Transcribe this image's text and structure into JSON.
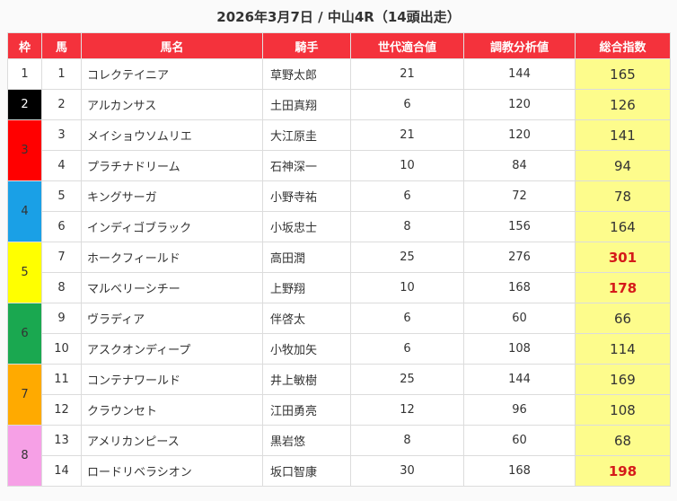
{
  "title": "2026年3月7日 / 中山4R（14頭出走）",
  "headers": [
    "枠",
    "馬",
    "馬名",
    "騎手",
    "世代適合値",
    "調教分析値",
    "総合指数"
  ],
  "waku_colors": {
    "1": {
      "bg": "#ffffff",
      "fg": "#333333"
    },
    "2": {
      "bg": "#000000",
      "fg": "#ffffff"
    },
    "3": {
      "bg": "#ff0000",
      "fg": "#333333"
    },
    "4": {
      "bg": "#1aa0e6",
      "fg": "#333333"
    },
    "5": {
      "bg": "#ffff00",
      "fg": "#333333"
    },
    "6": {
      "bg": "#1aa850",
      "fg": "#333333"
    },
    "7": {
      "bg": "#ffaa00",
      "fg": "#333333"
    },
    "8": {
      "bg": "#f6a0e6",
      "fg": "#333333"
    }
  },
  "highlight_color": "#d51a1a",
  "score_bg": "#fdfc8c",
  "rows": [
    {
      "waku": "1",
      "uma": "1",
      "name": "コレクテイニア",
      "jockey": "草野太郎",
      "sedai": "21",
      "chokyo": "144",
      "sogo": "165",
      "hi": false
    },
    {
      "waku": "2",
      "uma": "2",
      "name": "アルカンサス",
      "jockey": "土田真翔",
      "sedai": "6",
      "chokyo": "120",
      "sogo": "126",
      "hi": false
    },
    {
      "waku": "3",
      "uma": "3",
      "name": "メイショウソムリエ",
      "jockey": "大江原圭",
      "sedai": "21",
      "chokyo": "120",
      "sogo": "141",
      "hi": false
    },
    {
      "waku": "3",
      "uma": "4",
      "name": "プラチナドリーム",
      "jockey": "石神深一",
      "sedai": "10",
      "chokyo": "84",
      "sogo": "94",
      "hi": false
    },
    {
      "waku": "4",
      "uma": "5",
      "name": "キングサーガ",
      "jockey": "小野寺祐",
      "sedai": "6",
      "chokyo": "72",
      "sogo": "78",
      "hi": false
    },
    {
      "waku": "4",
      "uma": "6",
      "name": "インディゴブラック",
      "jockey": "小坂忠士",
      "sedai": "8",
      "chokyo": "156",
      "sogo": "164",
      "hi": false
    },
    {
      "waku": "5",
      "uma": "7",
      "name": "ホークフィールド",
      "jockey": "高田潤",
      "sedai": "25",
      "chokyo": "276",
      "sogo": "301",
      "hi": true
    },
    {
      "waku": "5",
      "uma": "8",
      "name": "マルベリーシチー",
      "jockey": "上野翔",
      "sedai": "10",
      "chokyo": "168",
      "sogo": "178",
      "hi": true
    },
    {
      "waku": "6",
      "uma": "9",
      "name": "ヴラディア",
      "jockey": "伴啓太",
      "sedai": "6",
      "chokyo": "60",
      "sogo": "66",
      "hi": false
    },
    {
      "waku": "6",
      "uma": "10",
      "name": "アスクオンディープ",
      "jockey": "小牧加矢",
      "sedai": "6",
      "chokyo": "108",
      "sogo": "114",
      "hi": false
    },
    {
      "waku": "7",
      "uma": "11",
      "name": "コンテナワールド",
      "jockey": "井上敏樹",
      "sedai": "25",
      "chokyo": "144",
      "sogo": "169",
      "hi": false
    },
    {
      "waku": "7",
      "uma": "12",
      "name": "クラウンセト",
      "jockey": "江田勇亮",
      "sedai": "12",
      "chokyo": "96",
      "sogo": "108",
      "hi": false
    },
    {
      "waku": "8",
      "uma": "13",
      "name": "アメリカンピース",
      "jockey": "黒岩悠",
      "sedai": "8",
      "chokyo": "60",
      "sogo": "68",
      "hi": false
    },
    {
      "waku": "8",
      "uma": "14",
      "name": "ロードリベラシオン",
      "jockey": "坂口智康",
      "sedai": "30",
      "chokyo": "168",
      "sogo": "198",
      "hi": true
    }
  ]
}
